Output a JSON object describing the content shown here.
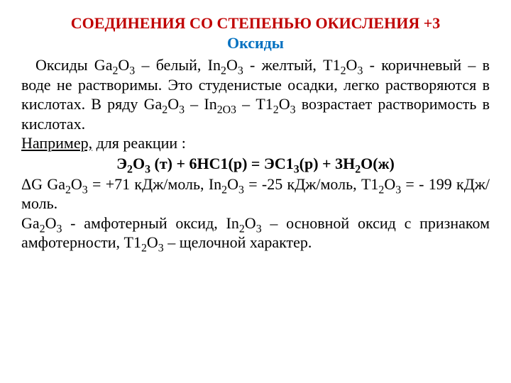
{
  "title_color": "#c00000",
  "subtitle_color": "#0070c0",
  "text_color": "#000000",
  "title": "СОЕДИНЕНИЯ СО СТЕПЕНЬЮ ОКИСЛЕНИЯ +3",
  "subtitle": "Оксиды",
  "p1_pre": "Оксиды Gа",
  "p1_s1": "2",
  "p1_m1": "О",
  "p1_s2": "3",
  "p1_m2": " – белый, In",
  "p1_s3": "2",
  "p1_m3": "O",
  "p1_s4": "3",
  "p1_m4": " - желтый, Т1",
  "p1_s5": "2",
  "p1_m5": "О",
  "p1_s6": "3",
  "p1_m6": " - коричневый – в воде не растворимы. Это студенистые осадки, легко растворяются в кислотах. В ряду Gа",
  "p1_s7": "2",
  "p1_m7": "О",
  "p1_s8": "3",
  "p1_m8": " – In",
  "p1_s9": "2О3",
  "p1_m9": " – Т1",
  "p1_s10": "2",
  "p1_m10": "О",
  "p1_s11": "3",
  "p1_m11": " возрастает растворимость в кислотах.",
  "example_label": " Например,",
  "example_tail": " для реакции :",
  "eq_pre": "Э",
  "eq_s1": "2",
  "eq_m1": "О",
  "eq_s2": "3",
  "eq_m2": " (т) + 6НС1(р) = ЭС1",
  "eq_s3": "3",
  "eq_m3": "(р) + 3H",
  "eq_s4": "2",
  "eq_m4": "O(ж)",
  "dg_pre": "ΔG Gа",
  "dg_s1": "2",
  "dg_m1": "О",
  "dg_s2": "3",
  "dg_m2": " = +71 кДж/моль, In",
  "dg_s3": "2",
  "dg_m3": "O",
  "dg_s4": "3",
  "dg_m4": " = -25 кДж/моль, Т1",
  "dg_s5": "2",
  "dg_m5": "О",
  "dg_s6": "3",
  "dg_m6": " = - 199 кДж/моль.",
  "p3_pre": "Gа",
  "p3_s1": "2",
  "p3_m1": "О",
  "p3_s2": "3",
  "p3_m2": " - амфотерный оксид, In",
  "p3_s3": "2",
  "p3_m3": "O",
  "p3_s4": "3",
  "p3_m4": " – основной оксид с признаком амфотерности, Т1",
  "p3_s5": "2",
  "p3_m5": "О",
  "p3_s6": "3",
  "p3_m6": " – щелочной характер."
}
